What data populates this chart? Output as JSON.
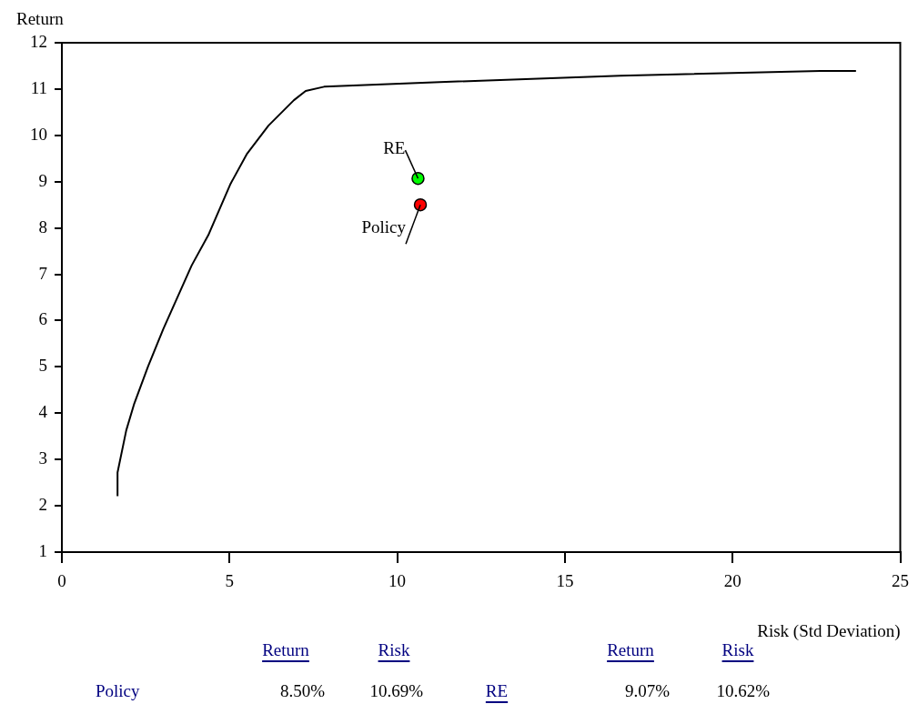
{
  "chart_data": {
    "type": "line",
    "xlabel": "Risk (Std Deviation)",
    "ylabel": "Return",
    "xlim": [
      0,
      25
    ],
    "xticks": [
      0,
      5,
      10,
      15,
      20,
      25
    ],
    "ylim": [
      1,
      12
    ],
    "yticks": [
      1,
      2,
      3,
      4,
      5,
      6,
      7,
      8,
      9,
      10,
      11,
      12
    ],
    "grid": false,
    "line_style": "solid",
    "series": [
      {
        "marker": "none",
        "color": "#000000",
        "x": [
          1.66,
          1.66,
          1.92,
          2.16,
          2.57,
          3.02,
          3.87,
          4.37,
          5.02,
          5.51,
          6.16,
          6.92,
          7.27,
          7.82,
          11.27,
          16.65,
          22.62,
          23.68
        ],
        "values": [
          2.21,
          2.72,
          3.63,
          4.21,
          5.01,
          5.81,
          7.19,
          7.85,
          8.94,
          9.59,
          10.21,
          10.76,
          10.96,
          11.05,
          11.15,
          11.29,
          11.39,
          11.39
        ]
      },
      {
        "type": "scatter",
        "marker": "circle",
        "name": "RE",
        "color": "#00ff00",
        "x": [
          10.62
        ],
        "values": [
          9.07
        ]
      },
      {
        "type": "scatter",
        "marker": "circle",
        "name": "Policy",
        "color": "#ff0000",
        "x": [
          10.69
        ],
        "values": [
          8.5
        ]
      }
    ],
    "annotations": [
      "Return",
      "Risk",
      "Return",
      "Risk",
      "8.50%",
      "10.69%",
      "9.07%",
      "10.62%"
    ]
  }
}
